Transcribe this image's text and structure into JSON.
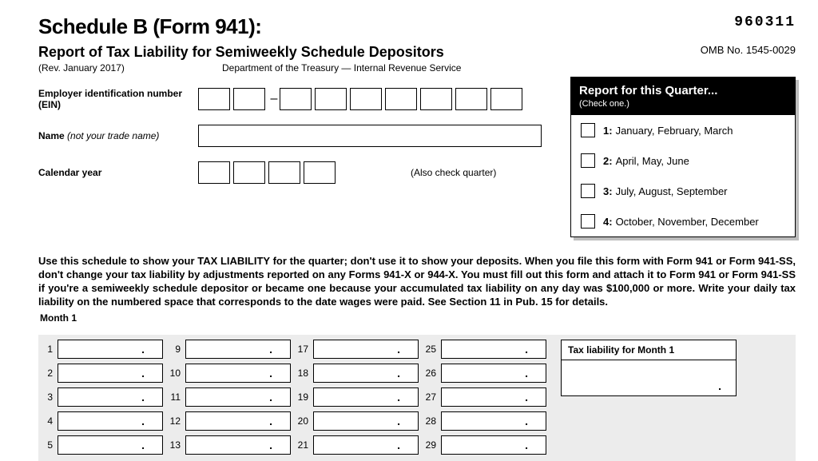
{
  "header": {
    "title": "Schedule B (Form 941):",
    "form_code": "960311",
    "subtitle": "Report of Tax Liability for Semiweekly Schedule Depositors",
    "omb": "OMB No. 1545-0029",
    "revision": "(Rev. January 2017)",
    "dept": "Department of the Treasury — Internal Revenue Service"
  },
  "fields": {
    "ein_label": "Employer identification number (EIN)",
    "name_label": "Name ",
    "name_sub": "(not your trade name)",
    "year_label": "Calendar year",
    "also_check": "(Also check quarter)"
  },
  "quarter": {
    "heading": "Report for this Quarter...",
    "sub": "(Check one.)",
    "options": [
      {
        "num": "1:",
        "text": "January, February, March"
      },
      {
        "num": "2:",
        "text": "April, May, June"
      },
      {
        "num": "3:",
        "text": "July, August, September"
      },
      {
        "num": "4:",
        "text": "October, November, December"
      }
    ]
  },
  "instructions": "Use this schedule to show your TAX LIABILITY for the quarter; don't use it to show your deposits. When you file this form with Form 941 or Form 941-SS, don't change your tax liability by adjustments reported on any Forms 941-X or 944-X. You must fill out this form and attach it to Form 941 or Form 941-SS if you're a semiweekly schedule depositor or became one because your accumulated tax liability on any day was $100,000 or more. Write your daily tax liability on the numbered space that corresponds to the date wages were paid. See Section 11 in Pub. 15 for details.",
  "month": {
    "label": "Month 1",
    "tax_liability_label": "Tax liability for Month 1",
    "columns": [
      [
        "1",
        "2",
        "3",
        "4",
        "5"
      ],
      [
        "9",
        "10",
        "11",
        "12",
        "13"
      ],
      [
        "17",
        "18",
        "19",
        "20",
        "21"
      ],
      [
        "25",
        "26",
        "27",
        "28",
        "29"
      ]
    ]
  },
  "style": {
    "box_border": "#000000",
    "shadow": "#bdbdbd",
    "month_bg": "#ececec"
  }
}
